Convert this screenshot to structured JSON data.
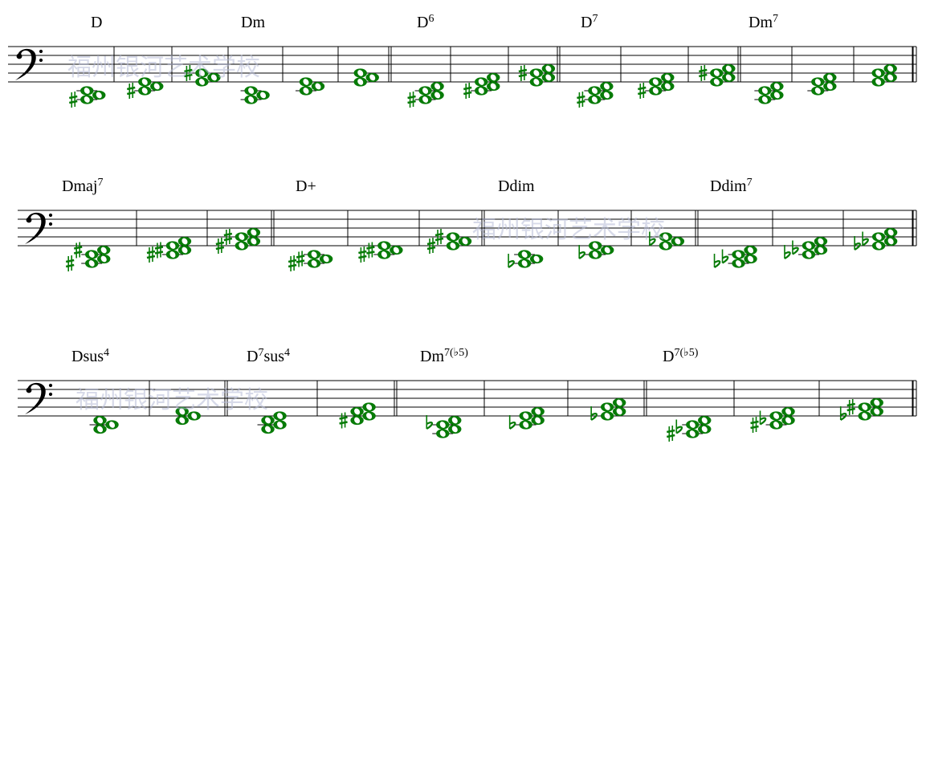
{
  "watermark": "福州银河艺术学校",
  "colors": {
    "note": "#077b07",
    "staff": "#000000",
    "watermark": "#b8bdd8"
  },
  "clef": "bass",
  "systems": [
    {
      "chords": [
        {
          "label": "D",
          "sup": "",
          "voicings": [
            [
              {
                "s": -4,
                "a": "sharp"
              },
              {
                "s": -3
              },
              {
                "s": -2
              }
            ],
            [
              {
                "s": -2,
                "a": "sharp"
              },
              {
                "s": -1
              },
              {
                "s": 0
              }
            ],
            [
              {
                "s": 0
              },
              {
                "s": 1
              },
              {
                "s": 2,
                "a": "sharp"
              }
            ]
          ]
        },
        {
          "label": "Dm",
          "sup": "",
          "voicings": [
            [
              {
                "s": -4
              },
              {
                "s": -3
              },
              {
                "s": -2
              }
            ],
            [
              {
                "s": -2
              },
              {
                "s": -1
              },
              {
                "s": 0
              }
            ],
            [
              {
                "s": 0
              },
              {
                "s": 1
              },
              {
                "s": 2
              }
            ]
          ]
        },
        {
          "label": "D",
          "sup": "6",
          "voicings": [
            [
              {
                "s": -4,
                "a": "sharp"
              },
              {
                "s": -3
              },
              {
                "s": -2
              },
              {
                "s": -1
              }
            ],
            [
              {
                "s": -2,
                "a": "sharp"
              },
              {
                "s": -1
              },
              {
                "s": 0
              },
              {
                "s": 1
              }
            ],
            [
              {
                "s": 0
              },
              {
                "s": 1
              },
              {
                "s": 2,
                "a": "sharp"
              },
              {
                "s": 3
              }
            ]
          ]
        },
        {
          "label": "D",
          "sup": "7",
          "voicings": [
            [
              {
                "s": -4,
                "a": "sharp"
              },
              {
                "s": -3
              },
              {
                "s": -2
              },
              {
                "s": -1
              }
            ],
            [
              {
                "s": -2,
                "a": "sharp"
              },
              {
                "s": -1
              },
              {
                "s": 0
              },
              {
                "s": 1
              }
            ],
            [
              {
                "s": 0
              },
              {
                "s": 1
              },
              {
                "s": 2,
                "a": "sharp"
              },
              {
                "s": 3
              }
            ]
          ]
        },
        {
          "label": "Dm",
          "sup": "7",
          "voicings": [
            [
              {
                "s": -4
              },
              {
                "s": -3
              },
              {
                "s": -2
              },
              {
                "s": -1
              }
            ],
            [
              {
                "s": -2
              },
              {
                "s": -1
              },
              {
                "s": 0
              },
              {
                "s": 1
              }
            ],
            [
              {
                "s": 0
              },
              {
                "s": 1
              },
              {
                "s": 2
              },
              {
                "s": 3
              }
            ]
          ]
        }
      ]
    },
    {
      "chords": [
        {
          "label": "Dmaj",
          "sup": "7",
          "voicings": [
            [
              {
                "s": -4,
                "a": "sharp"
              },
              {
                "s": -3
              },
              {
                "s": -2
              },
              {
                "s": -1,
                "a": "sharp"
              }
            ],
            [
              {
                "s": -2,
                "a": "sharp"
              },
              {
                "s": -1,
                "a": "sharp"
              },
              {
                "s": 0
              },
              {
                "s": 1
              }
            ],
            [
              {
                "s": 0,
                "a": "sharp"
              },
              {
                "s": 1
              },
              {
                "s": 2,
                "a": "sharp"
              },
              {
                "s": 3
              }
            ]
          ]
        },
        {
          "label": "D+",
          "sup": "",
          "voicings": [
            [
              {
                "s": -4,
                "a": "sharp"
              },
              {
                "s": -3,
                "a": "sharp"
              },
              {
                "s": -2
              }
            ],
            [
              {
                "s": -2,
                "a": "sharp"
              },
              {
                "s": -1,
                "a": "sharp"
              },
              {
                "s": 0
              }
            ],
            [
              {
                "s": 0,
                "a": "sharp"
              },
              {
                "s": 1
              },
              {
                "s": 2,
                "a": "sharp"
              }
            ]
          ]
        },
        {
          "label": "Ddim",
          "sup": "",
          "voicings": [
            [
              {
                "s": -4,
                "a": "flat"
              },
              {
                "s": -3
              },
              {
                "s": -2
              }
            ],
            [
              {
                "s": -2,
                "a": "flat"
              },
              {
                "s": -1
              },
              {
                "s": 0
              }
            ],
            [
              {
                "s": 0
              },
              {
                "s": 1,
                "a": "flat"
              },
              {
                "s": 2
              }
            ]
          ]
        },
        {
          "label": "Ddim",
          "sup": "7",
          "voicings": [
            [
              {
                "s": -4,
                "a": "flat"
              },
              {
                "s": -3,
                "a": "flat"
              },
              {
                "s": -2
              },
              {
                "s": -1
              }
            ],
            [
              {
                "s": -2,
                "a": "flat"
              },
              {
                "s": -1,
                "a": "flat"
              },
              {
                "s": 0
              },
              {
                "s": 1
              }
            ],
            [
              {
                "s": 0,
                "a": "flat"
              },
              {
                "s": 1,
                "a": "flat"
              },
              {
                "s": 2
              },
              {
                "s": 3
              }
            ]
          ]
        }
      ]
    },
    {
      "chords": [
        {
          "label": "Dsus",
          "sup": "4",
          "voicings": [
            [
              {
                "s": -3
              },
              {
                "s": -2
              },
              {
                "s": -1
              }
            ],
            [
              {
                "s": -1
              },
              {
                "s": 0
              },
              {
                "s": 1
              }
            ]
          ]
        },
        {
          "label": "D",
          "sup": "7",
          "post": "sus",
          "post_sup": "4",
          "voicings": [
            [
              {
                "s": -3
              },
              {
                "s": -2
              },
              {
                "s": -1
              },
              {
                "s": 0
              }
            ],
            [
              {
                "s": -1,
                "a": "sharp"
              },
              {
                "s": 0
              },
              {
                "s": 1
              },
              {
                "s": 2
              }
            ]
          ]
        },
        {
          "label": "Dm",
          "sup": "7(♭5)",
          "voicings": [
            [
              {
                "s": -4
              },
              {
                "s": -3
              },
              {
                "s": -2,
                "a": "flat"
              },
              {
                "s": -1
              }
            ],
            [
              {
                "s": -2,
                "a": "flat"
              },
              {
                "s": -1
              },
              {
                "s": 0
              },
              {
                "s": 1
              }
            ],
            [
              {
                "s": 0,
                "a": "flat"
              },
              {
                "s": 1
              },
              {
                "s": 2
              },
              {
                "s": 3
              }
            ]
          ]
        },
        {
          "label": "D",
          "sup": "7(♭5)",
          "voicings": [
            [
              {
                "s": -4,
                "a": "sharp"
              },
              {
                "s": -3,
                "a": "flat"
              },
              {
                "s": -2
              },
              {
                "s": -1
              }
            ],
            [
              {
                "s": -2,
                "a": "sharp"
              },
              {
                "s": -1,
                "a": "flat"
              },
              {
                "s": 0
              },
              {
                "s": 1
              }
            ],
            [
              {
                "s": 0,
                "a": "flat"
              },
              {
                "s": 1
              },
              {
                "s": 2,
                "a": "sharp"
              },
              {
                "s": 3
              }
            ]
          ]
        }
      ]
    }
  ]
}
